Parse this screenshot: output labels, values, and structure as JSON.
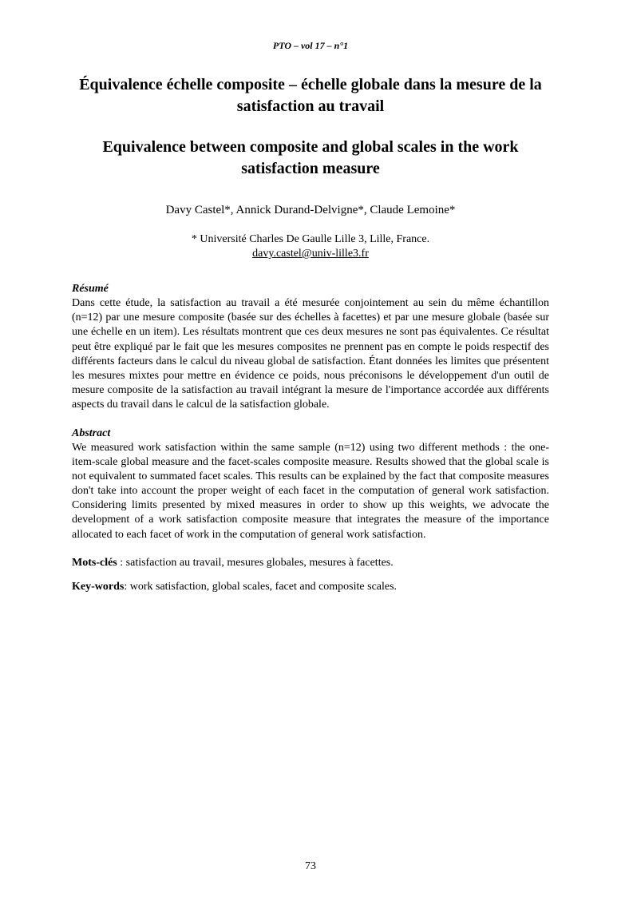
{
  "header": {
    "running": "PTO – vol 17 – n°1"
  },
  "titles": {
    "fr": "Équivalence échelle composite – échelle globale dans la mesure de la satisfaction au travail",
    "en": "Equivalence between composite and global scales in the work satisfaction measure"
  },
  "authors": "Davy Castel*, Annick Durand-Delvigne*, Claude Lemoine*",
  "affiliation": "* Université Charles De Gaulle Lille 3, Lille, France.",
  "email": "davy.castel@univ-lille3.fr",
  "resume": {
    "label": "Résumé",
    "text": "Dans cette étude, la satisfaction au travail a été mesurée conjointement au sein du même échantillon (n=12) par une mesure composite (basée sur des échelles à facettes) et par une mesure globale (basée sur une échelle en un item). Les résultats montrent que ces deux mesures ne sont pas équivalentes. Ce résultat peut être expliqué par le fait que les mesures composites ne prennent pas en compte le poids respectif des différents facteurs dans le calcul du niveau global de satisfaction. Étant données les limites que présentent les mesures mixtes pour mettre en évidence ce poids, nous préconisons le développement d'un outil de mesure composite de la satisfaction au travail intégrant la mesure de l'importance accordée aux différents aspects du travail dans le calcul de la satisfaction globale."
  },
  "abstract": {
    "label": "Abstract",
    "text": "We measured work satisfaction within the same sample (n=12) using two different methods : the one-item-scale global measure and the facet-scales composite measure. Results showed that the global scale is not equivalent to summated facet scales. This results can be explained by the fact that composite measures don't take into account the proper weight of each facet in the computation of general work satisfaction. Considering limits presented by mixed measures in order to show up this weights, we advocate the development of a work satisfaction composite measure that integrates the measure of the importance allocated to each facet of work in the computation of general work satisfaction."
  },
  "mots_cles": {
    "label": "Mots-clés",
    "text": " : satisfaction au travail, mesures globales, mesures à facettes."
  },
  "keywords": {
    "label": "Key-words",
    "text": ": work satisfaction, global scales, facet and composite scales."
  },
  "page_number": "73"
}
